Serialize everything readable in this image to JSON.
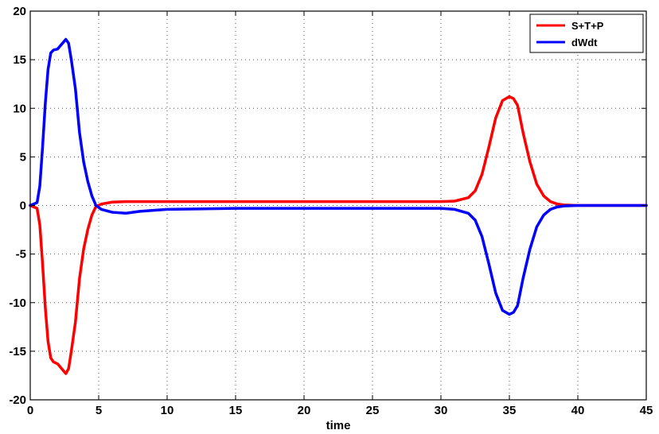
{
  "chart_data": {
    "type": "line",
    "title": "",
    "xlabel": "time",
    "ylabel": "",
    "xlim": [
      0,
      45
    ],
    "ylim": [
      -20,
      20
    ],
    "xticks": [
      "0",
      "5",
      "10",
      "15",
      "20",
      "25",
      "30",
      "35",
      "40",
      "45"
    ],
    "yticks": [
      "20",
      "15",
      "10",
      "5",
      "0",
      "-5",
      "-10",
      "-15",
      "-20"
    ],
    "grid": true,
    "legend_position": "top-right",
    "series": [
      {
        "name": "S+T+P",
        "color": "#ff0000",
        "x": [
          0,
          0.5,
          0.7,
          0.9,
          1.1,
          1.3,
          1.5,
          1.7,
          2.0,
          2.3,
          2.6,
          2.8,
          3.0,
          3.3,
          3.6,
          3.9,
          4.2,
          4.5,
          4.8,
          5.2,
          6,
          7,
          10,
          15,
          20,
          25,
          30,
          31,
          32,
          32.5,
          33,
          33.5,
          34,
          34.5,
          35,
          35.3,
          35.6,
          36,
          36.5,
          37,
          37.5,
          38,
          38.5,
          39,
          40,
          45
        ],
        "y": [
          0,
          -0.3,
          -2,
          -6,
          -10.5,
          -14,
          -15.7,
          -16.1,
          -16.3,
          -16.8,
          -17.3,
          -16.8,
          -15,
          -12,
          -7.5,
          -4.5,
          -2.5,
          -1.0,
          -0.1,
          0.15,
          0.35,
          0.4,
          0.4,
          0.4,
          0.4,
          0.4,
          0.4,
          0.45,
          0.8,
          1.5,
          3.2,
          6.0,
          9.0,
          10.8,
          11.2,
          11.0,
          10.3,
          7.5,
          4.5,
          2.2,
          1.0,
          0.4,
          0.15,
          0.05,
          0,
          0
        ]
      },
      {
        "name": "dWdt",
        "color": "#0000ff",
        "x": [
          0,
          0.5,
          0.7,
          0.9,
          1.1,
          1.3,
          1.5,
          1.7,
          2.0,
          2.3,
          2.6,
          2.8,
          3.0,
          3.3,
          3.6,
          3.9,
          4.2,
          4.5,
          4.8,
          5.2,
          6,
          7,
          8,
          10,
          15,
          20,
          25,
          30,
          31,
          32,
          32.5,
          33,
          33.5,
          34,
          34.5,
          35,
          35.3,
          35.6,
          36,
          36.5,
          37,
          37.5,
          38,
          38.5,
          39,
          40,
          45
        ],
        "y": [
          0,
          0.3,
          2,
          6,
          10.5,
          14,
          15.7,
          16,
          16.1,
          16.6,
          17.1,
          16.7,
          15,
          12,
          7.5,
          4.5,
          2.5,
          1.0,
          0.0,
          -0.4,
          -0.7,
          -0.8,
          -0.6,
          -0.4,
          -0.3,
          -0.3,
          -0.3,
          -0.3,
          -0.4,
          -0.8,
          -1.5,
          -3.2,
          -6.0,
          -9.0,
          -10.8,
          -11.2,
          -11.0,
          -10.3,
          -7.5,
          -4.5,
          -2.2,
          -1.0,
          -0.4,
          -0.15,
          -0.05,
          0,
          0
        ]
      }
    ]
  }
}
